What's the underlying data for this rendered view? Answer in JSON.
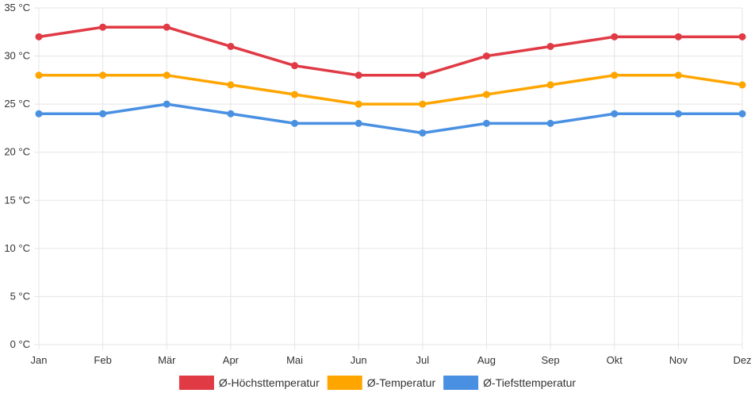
{
  "chart_data": {
    "type": "line",
    "categories": [
      "Jan",
      "Feb",
      "Mär",
      "Apr",
      "Mai",
      "Jun",
      "Jul",
      "Aug",
      "Sep",
      "Okt",
      "Nov",
      "Dez"
    ],
    "series": [
      {
        "name": "Ø-Höchsttemperatur",
        "color": "#e03a45",
        "values": [
          32,
          33,
          33,
          31,
          29,
          28,
          28,
          30,
          31,
          32,
          32,
          32
        ]
      },
      {
        "name": "Ø-Temperatur",
        "color": "#ffa500",
        "values": [
          28,
          28,
          28,
          27,
          26,
          25,
          25,
          26,
          27,
          28,
          28,
          27
        ]
      },
      {
        "name": "Ø-Tiefsttemperatur",
        "color": "#4a90e2",
        "values": [
          24,
          24,
          25,
          24,
          23,
          23,
          22,
          23,
          23,
          24,
          24,
          24
        ]
      }
    ],
    "y_ticks": [
      0,
      5,
      10,
      15,
      20,
      25,
      30,
      35
    ],
    "y_unit": "°C",
    "ylim": [
      0,
      35
    ],
    "grid": true,
    "legend": "bottom-center",
    "title": "",
    "xlabel": "",
    "ylabel": ""
  }
}
